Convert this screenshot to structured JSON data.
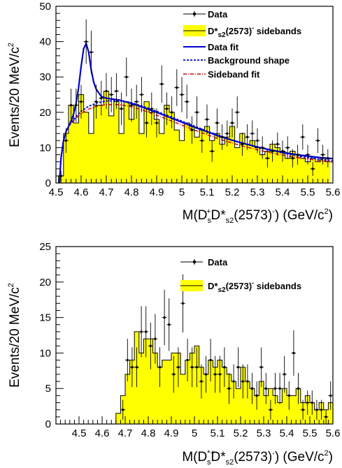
{
  "chart_data": [
    {
      "type": "histogram",
      "xlim": [
        4.5,
        5.6
      ],
      "ylim": [
        0,
        50
      ],
      "x_ticks": [
        "4.5",
        "4.6",
        "4.7",
        "4.8",
        "4.9",
        "5",
        "5.1",
        "5.2",
        "5.3",
        "5.4",
        "5.5",
        "5.6"
      ],
      "y_ticks": [
        "0",
        "10",
        "20",
        "30",
        "40",
        "50"
      ],
      "xlabel": "M(D_s^+D*_s2(2573)^-) (GeV/c^2)",
      "ylabel": "Events/20 MeV/c^2",
      "xlabel_parts": [
        "M(D",
        "s",
        "+",
        "D*",
        "s2",
        "(2573)",
        "-",
        ") (GeV/c",
        "2",
        ")"
      ],
      "ylabel_parts": [
        "Events/20 MeV/c",
        "2"
      ],
      "bin_width": 0.02,
      "legend_position": "top-right",
      "legend": {
        "data": "Data",
        "sideband": [
          "D*",
          "s2",
          "(2573)",
          "-",
          " sidebands"
        ],
        "fit": "Data fit",
        "background": "Background shape",
        "sideband_fit": "Sideband fit"
      },
      "colors": {
        "sideband_fill": "#ffff00",
        "fit": "#0000cc",
        "background": "#0000cc",
        "sideband_fit": "#cc0000"
      },
      "sideband_hist": {
        "x_low": [
          4.51,
          4.53,
          4.55,
          4.57,
          4.59,
          4.61,
          4.63,
          4.65,
          4.67,
          4.69,
          4.71,
          4.73,
          4.75,
          4.77,
          4.79,
          4.81,
          4.83,
          4.85,
          4.87,
          4.89,
          4.91,
          4.93,
          4.95,
          4.97,
          4.99,
          5.01,
          5.03,
          5.05,
          5.07,
          5.09,
          5.11,
          5.13,
          5.15,
          5.17,
          5.19,
          5.21,
          5.23,
          5.25,
          5.27,
          5.29,
          5.31,
          5.33,
          5.35,
          5.37,
          5.39,
          5.41,
          5.43,
          5.45,
          5.47,
          5.49,
          5.51,
          5.53,
          5.55,
          5.57
        ],
        "values": [
          2,
          14,
          22,
          17,
          25,
          20,
          14,
          22,
          22,
          26,
          19,
          23,
          14,
          23,
          18,
          22,
          14,
          23,
          20,
          18,
          14,
          22,
          20,
          15,
          12,
          17,
          16,
          13,
          15,
          16,
          12,
          14,
          11,
          13,
          16,
          10,
          14,
          11,
          12,
          10,
          8,
          9,
          11,
          10,
          9,
          7,
          9,
          8,
          7,
          6,
          7,
          6,
          7,
          6
        ]
      },
      "data_points": {
        "x": [
          4.52,
          4.54,
          4.56,
          4.58,
          4.6,
          4.62,
          4.64,
          4.66,
          4.68,
          4.7,
          4.72,
          4.74,
          4.76,
          4.78,
          4.8,
          4.82,
          4.84,
          4.86,
          4.88,
          4.9,
          4.92,
          4.94,
          4.96,
          4.98,
          5.0,
          5.02,
          5.04,
          5.06,
          5.08,
          5.1,
          5.12,
          5.14,
          5.16,
          5.18,
          5.2,
          5.22,
          5.24,
          5.26,
          5.28,
          5.3,
          5.32,
          5.34,
          5.36,
          5.38,
          5.4,
          5.42,
          5.44,
          5.46,
          5.48,
          5.5,
          5.52,
          5.54,
          5.56,
          5.58
        ],
        "y": [
          2,
          12,
          22,
          22,
          23,
          40,
          37,
          23,
          24,
          26,
          25,
          26,
          21,
          30,
          22,
          23,
          25,
          17,
          21,
          17,
          28,
          21,
          20,
          27,
          25,
          23,
          15,
          20,
          12,
          18,
          9,
          17,
          13,
          14,
          17,
          20,
          11,
          13,
          14,
          12,
          10,
          7,
          9,
          11,
          9,
          10,
          7,
          8,
          13,
          8,
          4,
          12,
          8,
          7
        ],
        "yerr": [
          1.4,
          3.5,
          4.7,
          4.7,
          4.8,
          6.3,
          6.1,
          4.8,
          4.9,
          5.1,
          5.0,
          5.1,
          4.6,
          5.5,
          4.7,
          4.8,
          5.0,
          4.1,
          4.6,
          4.1,
          5.3,
          4.6,
          4.5,
          5.2,
          5.0,
          4.8,
          3.9,
          4.5,
          3.5,
          4.2,
          3.0,
          4.1,
          3.6,
          3.7,
          4.1,
          4.5,
          3.3,
          3.6,
          3.7,
          3.5,
          3.2,
          2.6,
          3.0,
          3.3,
          3.0,
          3.2,
          2.6,
          2.8,
          3.6,
          2.8,
          2.0,
          3.5,
          2.8,
          2.6
        ]
      },
      "fit_curve": {
        "x": [
          4.514,
          4.52,
          4.53,
          4.54,
          4.55,
          4.56,
          4.57,
          4.58,
          4.59,
          4.6,
          4.61,
          4.62,
          4.63,
          4.64,
          4.65,
          4.66,
          4.68,
          4.7,
          4.75,
          4.8,
          4.85,
          4.9,
          4.95,
          5.0,
          5.05,
          5.1,
          5.15,
          5.2,
          5.25,
          5.3,
          5.35,
          5.4,
          5.45,
          5.5,
          5.55,
          5.6
        ],
        "y": [
          0,
          7,
          12,
          14.5,
          16,
          17.5,
          19.5,
          22.5,
          27,
          33,
          38,
          39.5,
          37,
          32,
          28.5,
          26.5,
          24.5,
          24,
          23.5,
          22.5,
          21.3,
          20,
          18.6,
          17.2,
          15.8,
          14.5,
          13.2,
          12.1,
          11.1,
          10.2,
          9.4,
          8.7,
          8.1,
          7.6,
          7.2,
          6.9
        ]
      },
      "background_curve": {
        "x": [
          4.514,
          4.52,
          4.53,
          4.54,
          4.55,
          4.56,
          4.58,
          4.6,
          4.63,
          4.66,
          4.7,
          4.75,
          4.8,
          4.85,
          4.9,
          4.95,
          5.0,
          5.05,
          5.1,
          5.15,
          5.2,
          5.25,
          5.3,
          5.35,
          5.4,
          5.45,
          5.5,
          5.55,
          5.6
        ],
        "y": [
          0,
          7,
          12,
          14.5,
          16,
          17,
          18.8,
          20.3,
          21.7,
          22.6,
          23.2,
          23.3,
          22.7,
          21.6,
          20.3,
          18.9,
          17.5,
          16.1,
          14.7,
          13.4,
          12.2,
          11.1,
          10.1,
          9.3,
          8.5,
          7.8,
          7.2,
          6.7,
          6.3
        ]
      },
      "sideband_fit_curve": {
        "x": [
          4.514,
          4.52,
          4.53,
          4.54,
          4.55,
          4.56,
          4.58,
          4.6,
          4.63,
          4.66,
          4.7,
          4.75,
          4.8,
          4.85,
          4.9,
          4.95,
          5.0,
          5.05,
          5.1,
          5.15,
          5.2,
          5.25,
          5.3,
          5.35,
          5.4,
          5.45,
          5.5,
          5.55,
          5.6
        ],
        "y": [
          0,
          7,
          12,
          14.5,
          16,
          16.8,
          18.3,
          19.6,
          20.9,
          21.7,
          22.2,
          22.2,
          21.6,
          20.5,
          19.2,
          17.8,
          16.4,
          15.0,
          13.7,
          12.4,
          11.3,
          10.3,
          9.4,
          8.6,
          7.9,
          7.3,
          6.8,
          6.3,
          5.9
        ]
      }
    },
    {
      "type": "histogram",
      "xlim": [
        4.4,
        5.6
      ],
      "ylim": [
        0,
        25
      ],
      "x_ticks": [
        "4.5",
        "4.6",
        "4.7",
        "4.8",
        "4.9",
        "5",
        "5.1",
        "5.2",
        "5.3",
        "5.4",
        "5.5",
        "5.6"
      ],
      "y_ticks": [
        "0",
        "5",
        "10",
        "15",
        "20",
        "25"
      ],
      "xlabel": "M(D*_s^+D*_s2(2573)^-) (GeV/c^2)",
      "ylabel": "Events/20 MeV/c^2",
      "xlabel_parts": [
        "M(D",
        "*+",
        "s",
        "D*",
        "s2",
        "(2573)",
        "-",
        ") (GeV/c",
        "2",
        ")"
      ],
      "ylabel_parts": [
        "Events/20 MeV/c",
        "2"
      ],
      "bin_width": 0.02,
      "legend_position": "top-right",
      "legend": {
        "data": "Data",
        "sideband": [
          "D*",
          "s2",
          "(2573)",
          "-",
          " sidebands"
        ]
      },
      "colors": {
        "sideband_fill": "#ffff00"
      },
      "sideband_hist": {
        "x_low": [
          4.66,
          4.68,
          4.7,
          4.72,
          4.74,
          4.76,
          4.78,
          4.8,
          4.82,
          4.84,
          4.86,
          4.88,
          4.9,
          4.92,
          4.94,
          4.96,
          4.98,
          5.0,
          5.02,
          5.04,
          5.06,
          5.08,
          5.1,
          5.12,
          5.14,
          5.16,
          5.18,
          5.2,
          5.22,
          5.24,
          5.26,
          5.28,
          5.3,
          5.32,
          5.34,
          5.36,
          5.38,
          5.4,
          5.42,
          5.44,
          5.46,
          5.48,
          5.5,
          5.52,
          5.54,
          5.56,
          5.58
        ],
        "values": [
          1.5,
          4,
          7,
          9,
          13,
          10,
          12,
          12,
          10,
          8,
          9,
          9,
          10,
          10,
          7,
          9,
          10,
          11,
          8,
          7,
          9,
          8,
          9,
          8,
          7,
          6,
          5,
          8,
          6,
          5,
          4,
          6,
          4,
          5,
          4,
          3,
          5,
          4,
          4,
          5,
          3,
          4,
          3,
          2,
          3,
          2,
          3
        ]
      },
      "data_points": {
        "x": [
          4.69,
          4.71,
          4.73,
          4.75,
          4.77,
          4.79,
          4.81,
          4.83,
          4.85,
          4.87,
          4.89,
          4.91,
          4.93,
          4.95,
          4.97,
          4.99,
          5.01,
          5.03,
          5.05,
          5.07,
          5.09,
          5.11,
          5.13,
          5.15,
          5.17,
          5.19,
          5.21,
          5.23,
          5.25,
          5.27,
          5.29,
          5.31,
          5.33,
          5.35,
          5.37,
          5.39,
          5.41,
          5.43,
          5.45,
          5.47,
          5.49,
          5.51,
          5.53,
          5.55,
          5.57,
          5.59
        ],
        "y": [
          2,
          9,
          8,
          8,
          13,
          13,
          11,
          12,
          8,
          15,
          14,
          7,
          8,
          17,
          9,
          8,
          8,
          6,
          7,
          9,
          7,
          7,
          8,
          5,
          6,
          8,
          6,
          6,
          5,
          4,
          8,
          5,
          2,
          5,
          5,
          7,
          4,
          10,
          5,
          2,
          3,
          3,
          2,
          2,
          1,
          4
        ],
        "yerr": [
          1.4,
          3.0,
          2.8,
          2.8,
          3.6,
          3.6,
          3.3,
          3.5,
          2.8,
          3.9,
          3.7,
          2.6,
          2.8,
          4.1,
          3.0,
          2.8,
          2.8,
          2.4,
          2.6,
          3.0,
          2.6,
          2.6,
          2.8,
          2.2,
          2.4,
          2.8,
          2.4,
          2.4,
          2.2,
          2.0,
          2.8,
          2.2,
          1.4,
          2.2,
          2.2,
          2.6,
          2.0,
          3.2,
          2.2,
          1.4,
          1.7,
          1.7,
          1.4,
          1.4,
          1.0,
          2.0
        ]
      }
    }
  ]
}
